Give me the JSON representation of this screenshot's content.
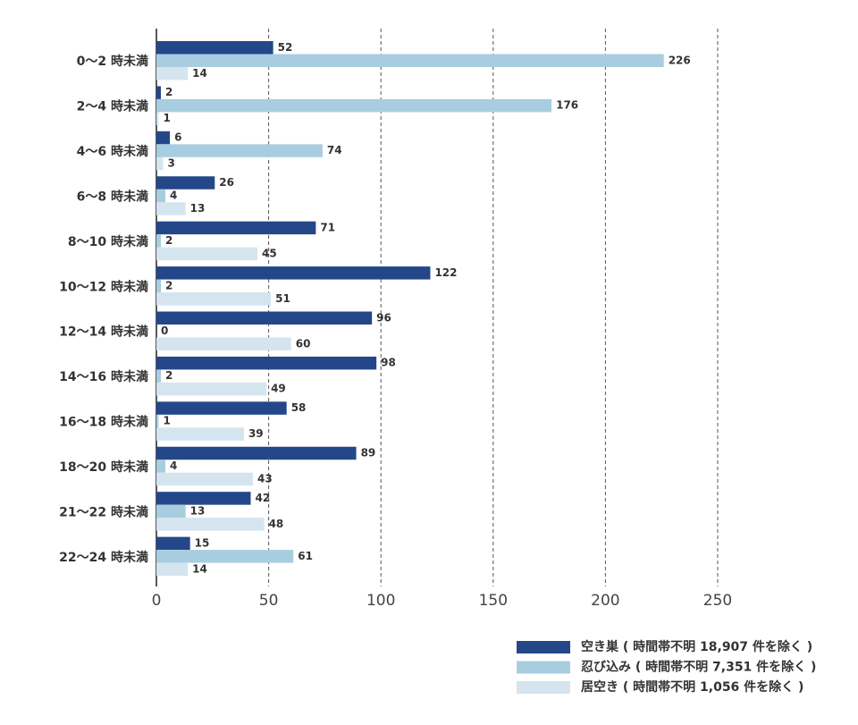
{
  "chart_data": {
    "type": "bar",
    "orientation": "horizontal",
    "categories": [
      "0～2 時未満",
      "2～4 時未満",
      "4～6 時未満",
      "6～8 時未満",
      "8～10 時未満",
      "10～12 時未満",
      "12～14 時未満",
      "14～16 時未満",
      "16～18 時未満",
      "18～20 時未満",
      "21～22 時未満",
      "22～24 時未満"
    ],
    "series": [
      {
        "name": "空き巣 ( 時間帯不明 18,907 件を除く )",
        "color": "#24478a",
        "values": [
          52,
          2,
          6,
          26,
          71,
          122,
          96,
          98,
          58,
          89,
          42,
          15
        ]
      },
      {
        "name": "忍び込み ( 時間帯不明 7,351 件を除く )",
        "color": "#a9cde0",
        "values": [
          226,
          176,
          74,
          4,
          2,
          2,
          0,
          2,
          1,
          4,
          13,
          61
        ]
      },
      {
        "name": "居空き ( 時間帯不明 1,056 件を除く )",
        "color": "#d4e5ef",
        "values": [
          14,
          1,
          3,
          13,
          45,
          51,
          60,
          49,
          39,
          43,
          48,
          14
        ]
      }
    ],
    "xlim": [
      0,
      250
    ],
    "xticks": [
      0,
      50,
      100,
      150,
      200,
      250
    ],
    "grid": true,
    "legend": "bottom-right"
  }
}
